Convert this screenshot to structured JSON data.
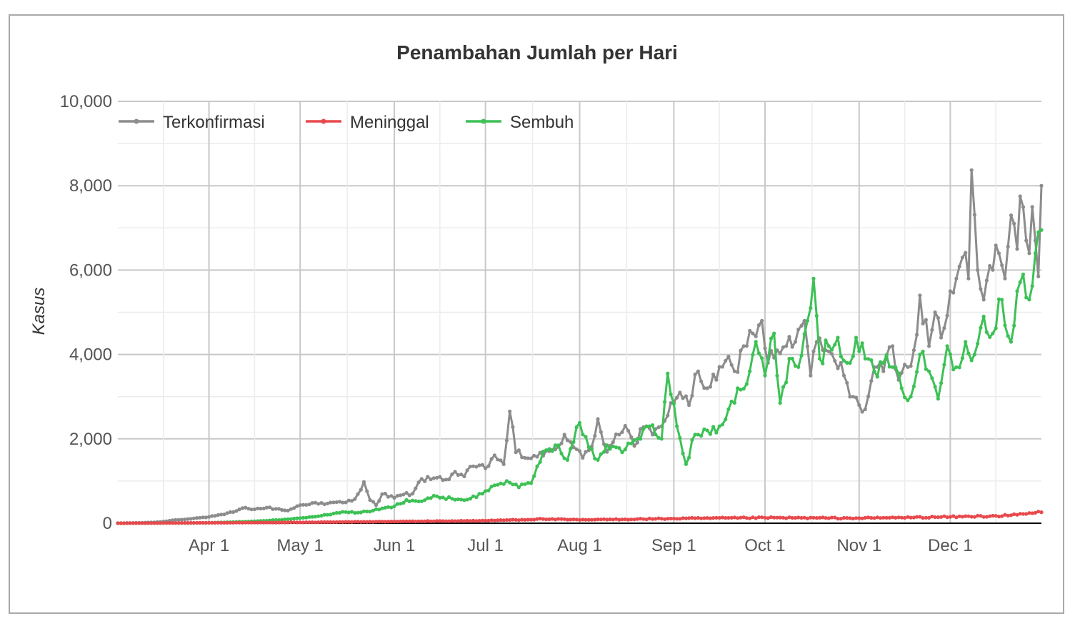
{
  "chart_data": {
    "type": "line",
    "title": "Penambahan Jumlah per Hari",
    "xlabel": "",
    "ylabel": "Kasus",
    "ylim": [
      0,
      10000
    ],
    "yticks": [
      0,
      2000,
      4000,
      6000,
      8000,
      10000
    ],
    "ytick_labels": [
      "0",
      "2,000",
      "4,000",
      "6,000",
      "8,000",
      "10,000"
    ],
    "xlim": [
      "2020-03-02",
      "2020-12-31"
    ],
    "xticks": [
      "2020-04-01",
      "2020-05-01",
      "2020-06-01",
      "2020-07-01",
      "2020-08-01",
      "2020-09-01",
      "2020-10-01",
      "2020-11-01",
      "2020-12-01"
    ],
    "xtick_labels": [
      "Apr 1",
      "May 1",
      "Jun 1",
      "Jul 1",
      "Aug 1",
      "Sep 1",
      "Oct 1",
      "Nov 1",
      "Dec 1"
    ],
    "grid": true,
    "legend_position": "top-left",
    "x_frequency": "daily",
    "series": [
      {
        "name": "Terkonfirmasi",
        "color": "#8c8c8c",
        "points": [
          [
            "2020-03-02",
            2
          ],
          [
            "2020-03-10",
            10
          ],
          [
            "2020-03-16",
            30
          ],
          [
            "2020-03-20",
            70
          ],
          [
            "2020-03-25",
            100
          ],
          [
            "2020-03-29",
            130
          ],
          [
            "2020-04-01",
            150
          ],
          [
            "2020-04-06",
            210
          ],
          [
            "2020-04-10",
            290
          ],
          [
            "2020-04-13",
            370
          ],
          [
            "2020-04-16",
            330
          ],
          [
            "2020-04-20",
            370
          ],
          [
            "2020-04-23",
            340
          ],
          [
            "2020-04-27",
            300
          ],
          [
            "2020-05-01",
            430
          ],
          [
            "2020-05-05",
            480
          ],
          [
            "2020-05-09",
            450
          ],
          [
            "2020-05-13",
            500
          ],
          [
            "2020-05-15",
            490
          ],
          [
            "2020-05-18",
            530
          ],
          [
            "2020-05-20",
            690
          ],
          [
            "2020-05-22",
            980
          ],
          [
            "2020-05-24",
            550
          ],
          [
            "2020-05-26",
            430
          ],
          [
            "2020-05-28",
            690
          ],
          [
            "2020-06-01",
            600
          ],
          [
            "2020-06-04",
            680
          ],
          [
            "2020-06-07",
            700
          ],
          [
            "2020-06-10",
            1050
          ],
          [
            "2020-06-13",
            1040
          ],
          [
            "2020-06-16",
            1100
          ],
          [
            "2020-06-19",
            1040
          ],
          [
            "2020-06-21",
            1220
          ],
          [
            "2020-06-24",
            1110
          ],
          [
            "2020-06-27",
            1350
          ],
          [
            "2020-07-01",
            1300
          ],
          [
            "2020-07-04",
            1610
          ],
          [
            "2020-07-07",
            1400
          ],
          [
            "2020-07-09",
            2650
          ],
          [
            "2020-07-11",
            1680
          ],
          [
            "2020-07-14",
            1550
          ],
          [
            "2020-07-17",
            1600
          ],
          [
            "2020-07-20",
            1600
          ],
          [
            "2020-07-24",
            1750
          ],
          [
            "2020-07-27",
            2100
          ],
          [
            "2020-07-30",
            1800
          ],
          [
            "2020-08-02",
            1550
          ],
          [
            "2020-08-05",
            1820
          ],
          [
            "2020-08-07",
            2470
          ],
          [
            "2020-08-10",
            1690
          ],
          [
            "2020-08-13",
            2110
          ],
          [
            "2020-08-16",
            2310
          ],
          [
            "2020-08-19",
            1830
          ],
          [
            "2020-08-22",
            2280
          ],
          [
            "2020-08-25",
            2100
          ],
          [
            "2020-08-28",
            2300
          ],
          [
            "2020-08-31",
            2850
          ],
          [
            "2020-09-03",
            3100
          ],
          [
            "2020-09-06",
            2800
          ],
          [
            "2020-09-09",
            3600
          ],
          [
            "2020-09-12",
            3200
          ],
          [
            "2020-09-15",
            3400
          ],
          [
            "2020-09-18",
            3850
          ],
          [
            "2020-09-21",
            3600
          ],
          [
            "2020-09-24",
            4200
          ],
          [
            "2020-09-27",
            4500
          ],
          [
            "2020-09-30",
            4800
          ],
          [
            "2020-10-02",
            3800
          ],
          [
            "2020-10-05",
            4100
          ],
          [
            "2020-10-08",
            4200
          ],
          [
            "2020-10-11",
            4300
          ],
          [
            "2020-10-14",
            4800
          ],
          [
            "2020-10-16",
            3500
          ],
          [
            "2020-10-18",
            4300
          ],
          [
            "2020-10-21",
            4100
          ],
          [
            "2020-10-24",
            3850
          ],
          [
            "2020-10-27",
            3500
          ],
          [
            "2020-10-30",
            3000
          ],
          [
            "2020-11-01",
            2800
          ],
          [
            "2020-11-03",
            2700
          ],
          [
            "2020-11-06",
            3700
          ],
          [
            "2020-11-09",
            3600
          ],
          [
            "2020-11-12",
            4200
          ],
          [
            "2020-11-14",
            3400
          ],
          [
            "2020-11-17",
            3700
          ],
          [
            "2020-11-19",
            4100
          ],
          [
            "2020-11-21",
            5400
          ],
          [
            "2020-11-24",
            4200
          ],
          [
            "2020-11-26",
            5000
          ],
          [
            "2020-11-28",
            4400
          ],
          [
            "2020-12-01",
            5500
          ],
          [
            "2020-12-03",
            5800
          ],
          [
            "2020-12-05",
            6300
          ],
          [
            "2020-12-07",
            5800
          ],
          [
            "2020-12-08",
            8370
          ],
          [
            "2020-12-10",
            6000
          ],
          [
            "2020-12-12",
            5300
          ],
          [
            "2020-12-14",
            6100
          ],
          [
            "2020-12-17",
            6400
          ],
          [
            "2020-12-19",
            5800
          ],
          [
            "2020-12-21",
            7300
          ],
          [
            "2020-12-23",
            6500
          ],
          [
            "2020-12-24",
            7750
          ],
          [
            "2020-12-26",
            6700
          ],
          [
            "2020-12-27",
            6400
          ],
          [
            "2020-12-28",
            7500
          ],
          [
            "2020-12-29",
            6700
          ],
          [
            "2020-12-30",
            5850
          ],
          [
            "2020-12-31",
            8000
          ]
        ]
      },
      {
        "name": "Meninggal",
        "color": "#e8494d",
        "points": [
          [
            "2020-03-02",
            0
          ],
          [
            "2020-04-01",
            10
          ],
          [
            "2020-05-01",
            20
          ],
          [
            "2020-06-01",
            40
          ],
          [
            "2020-07-01",
            60
          ],
          [
            "2020-07-20",
            100
          ],
          [
            "2020-08-01",
            80
          ],
          [
            "2020-09-01",
            110
          ],
          [
            "2020-10-01",
            130
          ],
          [
            "2020-11-01",
            120
          ],
          [
            "2020-12-01",
            150
          ],
          [
            "2020-12-20",
            180
          ],
          [
            "2020-12-31",
            260
          ]
        ]
      },
      {
        "name": "Sembuh",
        "color": "#3cc155",
        "points": [
          [
            "2020-03-02",
            0
          ],
          [
            "2020-03-20",
            5
          ],
          [
            "2020-04-01",
            10
          ],
          [
            "2020-04-10",
            30
          ],
          [
            "2020-04-20",
            60
          ],
          [
            "2020-04-28",
            100
          ],
          [
            "2020-05-01",
            120
          ],
          [
            "2020-05-05",
            150
          ],
          [
            "2020-05-10",
            200
          ],
          [
            "2020-05-15",
            270
          ],
          [
            "2020-05-20",
            250
          ],
          [
            "2020-05-25",
            300
          ],
          [
            "2020-06-01",
            400
          ],
          [
            "2020-06-05",
            550
          ],
          [
            "2020-06-10",
            520
          ],
          [
            "2020-06-15",
            640
          ],
          [
            "2020-06-20",
            580
          ],
          [
            "2020-06-25",
            560
          ],
          [
            "2020-06-30",
            700
          ],
          [
            "2020-07-04",
            900
          ],
          [
            "2020-07-08",
            1000
          ],
          [
            "2020-07-12",
            850
          ],
          [
            "2020-07-16",
            950
          ],
          [
            "2020-07-20",
            1700
          ],
          [
            "2020-07-24",
            1850
          ],
          [
            "2020-07-28",
            1500
          ],
          [
            "2020-08-01",
            2380
          ],
          [
            "2020-08-04",
            1800
          ],
          [
            "2020-08-07",
            1500
          ],
          [
            "2020-08-10",
            1850
          ],
          [
            "2020-08-13",
            1800
          ],
          [
            "2020-08-16",
            1750
          ],
          [
            "2020-08-20",
            2000
          ],
          [
            "2020-08-24",
            2300
          ],
          [
            "2020-08-28",
            2000
          ],
          [
            "2020-08-30",
            3550
          ],
          [
            "2020-09-02",
            2300
          ],
          [
            "2020-09-05",
            1400
          ],
          [
            "2020-09-08",
            2100
          ],
          [
            "2020-09-12",
            2200
          ],
          [
            "2020-09-16",
            2300
          ],
          [
            "2020-09-19",
            2700
          ],
          [
            "2020-09-22",
            3200
          ],
          [
            "2020-09-25",
            3300
          ],
          [
            "2020-09-28",
            4300
          ],
          [
            "2020-10-01",
            3500
          ],
          [
            "2020-10-04",
            4500
          ],
          [
            "2020-10-06",
            2850
          ],
          [
            "2020-10-09",
            3900
          ],
          [
            "2020-10-12",
            3700
          ],
          [
            "2020-10-15",
            4800
          ],
          [
            "2020-10-17",
            5800
          ],
          [
            "2020-10-19",
            3900
          ],
          [
            "2020-10-22",
            4200
          ],
          [
            "2020-10-25",
            4400
          ],
          [
            "2020-10-28",
            3800
          ],
          [
            "2020-10-31",
            4400
          ],
          [
            "2020-11-03",
            3900
          ],
          [
            "2020-11-06",
            3600
          ],
          [
            "2020-11-09",
            3800
          ],
          [
            "2020-11-12",
            3700
          ],
          [
            "2020-11-15",
            3200
          ],
          [
            "2020-11-18",
            3000
          ],
          [
            "2020-11-21",
            4000
          ],
          [
            "2020-11-24",
            3600
          ],
          [
            "2020-11-27",
            2950
          ],
          [
            "2020-11-30",
            4200
          ],
          [
            "2020-12-03",
            3700
          ],
          [
            "2020-12-06",
            4300
          ],
          [
            "2020-12-09",
            4000
          ],
          [
            "2020-12-12",
            4900
          ],
          [
            "2020-12-15",
            4500
          ],
          [
            "2020-12-18",
            5300
          ],
          [
            "2020-12-21",
            4300
          ],
          [
            "2020-12-23",
            5500
          ],
          [
            "2020-12-25",
            5900
          ],
          [
            "2020-12-27",
            5300
          ],
          [
            "2020-12-29",
            6400
          ],
          [
            "2020-12-30",
            6900
          ],
          [
            "2020-12-31",
            6950
          ]
        ]
      }
    ]
  }
}
